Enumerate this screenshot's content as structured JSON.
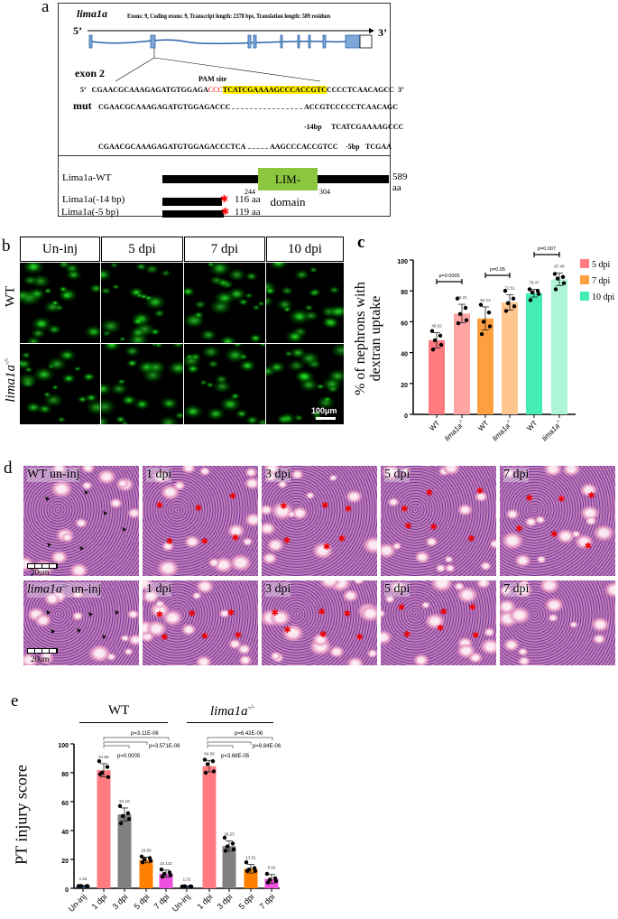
{
  "panel_labels": {
    "a": "a",
    "b": "b",
    "c": "c",
    "d": "d",
    "e": "e"
  },
  "panel_a": {
    "gene": "lima1a",
    "gene_info": "Exons: 9, Coding exons: 9, Transcript length: 2378 bps, Translation length: 589 residues",
    "five_prime": "5’",
    "three_prime": "3’",
    "exon_label": "exon 2",
    "pam_label": "PAM site",
    "wt_seq_start": "CGAACGCAAAGAGATGTGGAGA",
    "wt_seq_pam": "CCC",
    "wt_seq_target": "TCATCGAAAAGCCCACCGTC",
    "wt_seq_end": "CCCCTCAACAGCC",
    "mut_label": "mut",
    "mut1_left": "CGAACGCAAAGAGATGTGGAGACCC",
    "mut1_right": "ACCGTCCCCCTCAACAGC",
    "del14_label": "-14bp",
    "del14_seq": "TCATCGAAAAGCCC",
    "mut2_left": "CGAACGCAAAGAGATGTGGAGACCCTCA",
    "mut2_right": "AAGCCCACCGTCC",
    "del5_label": "-5bp",
    "del5_seq": "TCGAA",
    "proteins": [
      {
        "name": "Lima1a-WT",
        "length": "589 aa"
      },
      {
        "name": "Lima1a(-14 bp)",
        "length": "116 aa"
      },
      {
        "name": "Lima1a(-5 bp)",
        "length": "119 aa"
      }
    ],
    "domain_label": "LIM-domain",
    "domain_start": "244",
    "domain_end": "304",
    "colors": {
      "exon": "#7ea6d8",
      "intron": "#2a64a8",
      "pam": "#ff0000",
      "target_highlight": "#ffee00",
      "domain": "#8cc63f",
      "stop": "#ff0000"
    }
  },
  "panel_b": {
    "columns": [
      "Un-inj",
      "5 dpi",
      "7 dpi",
      "10 dpi"
    ],
    "rows": [
      "WT",
      "lima1a"
    ],
    "row_superscript": "-/-",
    "scale_bar": "100μm"
  },
  "chart_data": [
    {
      "type": "bar",
      "panel": "c",
      "ylabel": "% of nephrons with dextran uptake",
      "ylim": [
        0,
        100
      ],
      "yticks": [
        "0",
        "20",
        "40",
        "60",
        "80",
        "100"
      ],
      "categories": [
        "WT",
        "lima1a-/-",
        "WT",
        "lima1a-/-",
        "WT",
        "lima1a-/-"
      ],
      "values": [
        48.02,
        65.31,
        62.13,
        72.51,
        78.47,
        87.46
      ],
      "value_labels": [
        "48.02",
        "65.31",
        "62.13",
        "72.51",
        "78.47",
        "87.46"
      ],
      "errors": [
        5,
        6,
        7.5,
        5,
        2.5,
        4
      ],
      "points": [
        [
          54,
          51,
          48,
          45,
          42
        ],
        [
          75,
          69,
          65,
          61,
          59
        ],
        [
          71,
          66,
          60,
          57,
          52
        ],
        [
          80,
          75,
          72,
          70,
          67
        ],
        [
          81,
          80,
          79,
          78,
          74
        ],
        [
          91,
          89,
          88,
          85,
          81
        ]
      ],
      "colors": [
        "#ff7b80",
        "#ffa3a3",
        "#ffa040",
        "#ffc78e",
        "#44edb2",
        "#aef5d9"
      ],
      "legend": [
        {
          "name": "5 dpi",
          "color": "#ff7b80"
        },
        {
          "name": "7 dpi",
          "color": "#ffa040"
        },
        {
          "name": "10 dpi",
          "color": "#44edb2"
        }
      ],
      "legend_position": "right",
      "comparisons": [
        {
          "pair": [
            0,
            1
          ],
          "label": "p=0.0005"
        },
        {
          "pair": [
            2,
            3
          ],
          "label": "p=0.05"
        },
        {
          "pair": [
            4,
            5
          ],
          "label": "p=0.007"
        }
      ]
    },
    {
      "type": "bar",
      "panel": "e",
      "ylabel": "PT injury score",
      "ylim": [
        0,
        100
      ],
      "yticks": [
        "0",
        "20",
        "40",
        "60",
        "80",
        "100"
      ],
      "groups": [
        {
          "name": "WT"
        },
        {
          "name": "lima1a",
          "superscript": "-/-"
        }
      ],
      "categories": [
        "Un-inj",
        "1 dpi",
        "3 dpi",
        "5 dpi",
        "7 dpi",
        "Un-inj",
        "1 dpi",
        "3 dpi",
        "5 dpi",
        "7 dpi"
      ],
      "values": [
        1.53,
        81.8,
        51.16,
        19.6,
        10.122,
        1.31,
        84.56,
        29.23,
        13.51,
        6.54
      ],
      "value_labels": [
        "1.53",
        "81.80",
        "51.16",
        "19.60",
        "10.122",
        "1.31",
        "84.56",
        "29.23",
        "13.51",
        "6.54"
      ],
      "errors": [
        0.5,
        4.5,
        4.5,
        2,
        2.5,
        0.4,
        4,
        3.5,
        3,
        3
      ],
      "points": [
        [
          1.5,
          1.5,
          1.6,
          1.5,
          1.5
        ],
        [
          88,
          84,
          80,
          77,
          79
        ],
        [
          57,
          52,
          50,
          48,
          45
        ],
        [
          22,
          21,
          20,
          19,
          18
        ],
        [
          13,
          11,
          10,
          9,
          8
        ],
        [
          1.3,
          1.3,
          1.4,
          1.3,
          1.2
        ],
        [
          89,
          88,
          86,
          81,
          80
        ],
        [
          35,
          31,
          29,
          27,
          26
        ],
        [
          18,
          14,
          13,
          12,
          12
        ],
        [
          10,
          7,
          6,
          5,
          4
        ]
      ],
      "colors": [
        "#1f5fa0",
        "#ff7b80",
        "#808080",
        "#ff8000",
        "#f050e0",
        "#1f5fa0",
        "#ff7b80",
        "#808080",
        "#ff8000",
        "#f050e0"
      ],
      "comparisons": [
        {
          "group": 0,
          "label": "p=3.11E-06"
        },
        {
          "group": 0,
          "label": "p=3.571E-06"
        },
        {
          "group": 0,
          "label": "p=0.0005"
        },
        {
          "group": 1,
          "label": "p=6.42E-06"
        },
        {
          "group": 1,
          "label": "p=9.84E-06"
        },
        {
          "group": 1,
          "label": "p=3.68E-05"
        }
      ]
    }
  ],
  "panel_d": {
    "row1": [
      "WT un-inj",
      "1 dpi",
      "3 dpi",
      "5 dpi",
      "7 dpi"
    ],
    "row2_first": "lima1a",
    "row2_first_suffix": " un-inj",
    "row2_superscript": "-/-",
    "row2": [
      "1 dpi",
      "3 dpi",
      "5 dpi",
      "7 dpi"
    ],
    "scale_bar": "20um"
  }
}
